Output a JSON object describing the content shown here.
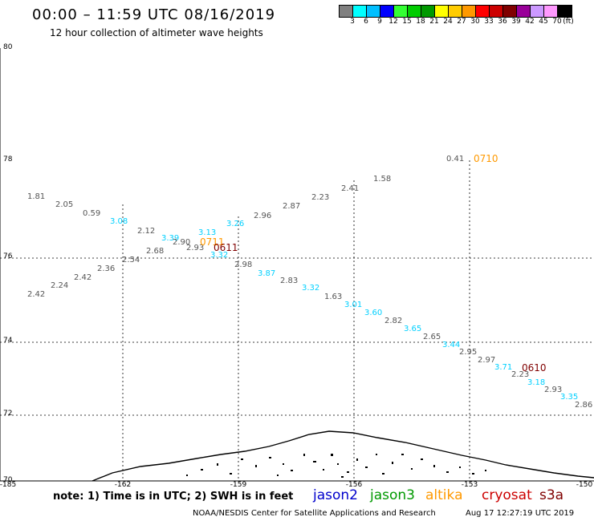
{
  "header": {
    "title": "00:00 – 11:59 UTC 08/16/2019",
    "subtitle": "12 hour collection of altimeter wave heights"
  },
  "legend": {
    "colors": [
      "#808080",
      "#00ffff",
      "#00bfff",
      "#0000ff",
      "#33ff33",
      "#00cc00",
      "#009900",
      "#ffff00",
      "#ffcc00",
      "#ff9900",
      "#ff0000",
      "#cc0000",
      "#800000",
      "#990099",
      "#cc99ff",
      "#ff99ff",
      "#000000"
    ],
    "labels": [
      "3",
      "6",
      "9",
      "12",
      "15",
      "18",
      "21",
      "24",
      "27",
      "30",
      "33",
      "36",
      "39",
      "42",
      "45",
      "70",
      "(ft)"
    ]
  },
  "axes": {
    "lat_labels": [
      "80",
      "78",
      "76",
      "74",
      "72",
      "70"
    ],
    "lon_labels": [
      "-185",
      "-162",
      "-159",
      "-156",
      "-153",
      "-150"
    ]
  },
  "observations": [
    {
      "v": "1.81",
      "c": "gray"
    },
    {
      "v": "2.05",
      "c": "gray"
    },
    {
      "v": "0.59",
      "c": "gray"
    },
    {
      "v": "3.08",
      "c": "cyan"
    },
    {
      "v": "2.12",
      "c": "gray"
    },
    {
      "v": "3.39",
      "c": "cyan"
    },
    {
      "v": "2.90",
      "c": "gray"
    },
    {
      "v": "2.68",
      "c": "gray"
    },
    {
      "v": "2.93",
      "c": "gray"
    },
    {
      "v": "3.13",
      "c": "cyan"
    },
    {
      "v": "3.26",
      "c": "cyan"
    },
    {
      "v": "2.96",
      "c": "gray"
    },
    {
      "v": "2.87",
      "c": "gray"
    },
    {
      "v": "2.23",
      "c": "gray"
    },
    {
      "v": "2.41",
      "c": "gray"
    },
    {
      "v": "1.58",
      "c": "gray"
    },
    {
      "v": "0.41",
      "c": "gray"
    },
    {
      "v": "3.32",
      "c": "cyan"
    },
    {
      "v": "2.54",
      "c": "gray"
    },
    {
      "v": "2.36",
      "c": "gray"
    },
    {
      "v": "2.42",
      "c": "gray"
    },
    {
      "v": "2.24",
      "c": "gray"
    },
    {
      "v": "2.42",
      "c": "gray"
    },
    {
      "v": "2.98",
      "c": "gray"
    },
    {
      "v": "3.87",
      "c": "cyan"
    },
    {
      "v": "2.83",
      "c": "gray"
    },
    {
      "v": "3.32",
      "c": "cyan"
    },
    {
      "v": "1.63",
      "c": "gray"
    },
    {
      "v": "3.01",
      "c": "cyan"
    },
    {
      "v": "3.60",
      "c": "cyan"
    },
    {
      "v": "2.82",
      "c": "gray"
    },
    {
      "v": "3.65",
      "c": "cyan"
    },
    {
      "v": "2.65",
      "c": "gray"
    },
    {
      "v": "3.44",
      "c": "cyan"
    },
    {
      "v": "2.95",
      "c": "gray"
    },
    {
      "v": "2.97",
      "c": "gray"
    },
    {
      "v": "3.71",
      "c": "cyan"
    },
    {
      "v": "2.23",
      "c": "gray"
    },
    {
      "v": "3.18",
      "c": "cyan"
    },
    {
      "v": "2.93",
      "c": "gray"
    },
    {
      "v": "3.35",
      "c": "cyan"
    },
    {
      "v": "2.86",
      "c": "gray"
    }
  ],
  "pass_times": [
    {
      "t": "0710",
      "color": "#ff9900"
    },
    {
      "t": "0711",
      "color": "#ff9900"
    },
    {
      "t": "0611",
      "color": "#800000"
    },
    {
      "t": "0610",
      "color": "#800000"
    }
  ],
  "footer": {
    "note": "note: 1) Time is in UTC; 2) SWH is in feet",
    "satellites": [
      {
        "name": "jason2",
        "color": "#0000cc"
      },
      {
        "name": "jason3",
        "color": "#009900"
      },
      {
        "name": "altika",
        "color": "#ff9900"
      },
      {
        "name": "cryosat",
        "color": "#cc0000"
      },
      {
        "name": "s3a",
        "color": "#800000"
      }
    ],
    "credit": "NOAA/NESDIS Center for Satellite Applications and Research",
    "timestamp": "Aug 17 12:27:19 UTC 2019"
  }
}
